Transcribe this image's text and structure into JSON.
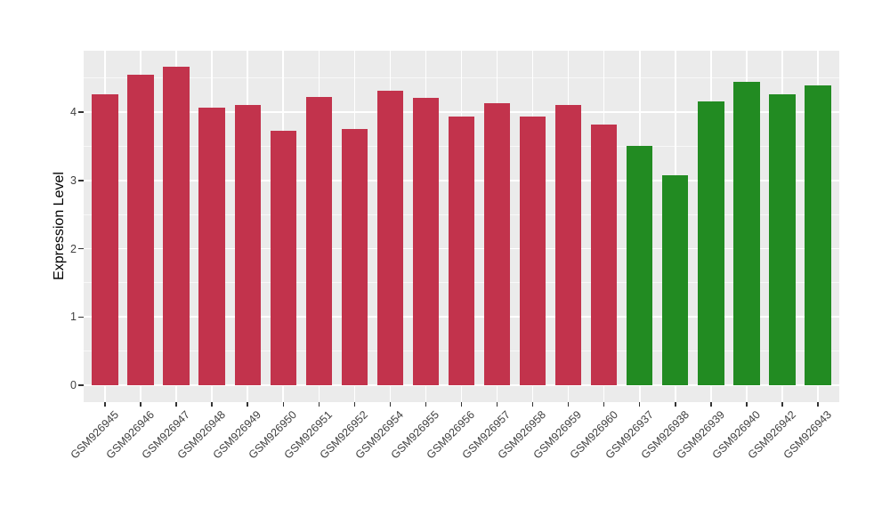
{
  "chart_data": {
    "type": "bar",
    "title": "",
    "xlabel": "",
    "ylabel": "Expression Level",
    "ylim": [
      0,
      4.9
    ],
    "yticks": [
      0,
      1,
      2,
      3,
      4
    ],
    "grid": "major-and-minor",
    "legend": "none",
    "categories": [
      "GSM926945",
      "GSM926946",
      "GSM926947",
      "GSM926948",
      "GSM926949",
      "GSM926950",
      "GSM926951",
      "GSM926952",
      "GSM926954",
      "GSM926955",
      "GSM926956",
      "GSM926957",
      "GSM926958",
      "GSM926959",
      "GSM926960",
      "GSM926937",
      "GSM926938",
      "GSM926939",
      "GSM926940",
      "GSM926942",
      "GSM926943"
    ],
    "values": [
      4.26,
      4.55,
      4.67,
      4.06,
      4.1,
      3.73,
      4.22,
      3.75,
      4.31,
      4.21,
      3.94,
      4.13,
      3.94,
      4.1,
      3.82,
      3.51,
      3.08,
      4.16,
      4.44,
      4.26,
      4.39
    ],
    "groups": [
      "red",
      "red",
      "red",
      "red",
      "red",
      "red",
      "red",
      "red",
      "red",
      "red",
      "red",
      "red",
      "red",
      "red",
      "red",
      "green",
      "green",
      "green",
      "green",
      "green",
      "green"
    ],
    "group_colors": {
      "red": "#C2334C",
      "green": "#228B22"
    }
  },
  "style": {
    "figure_bg": "#FFFFFF",
    "panel_bg": "#EBEBEB",
    "grid_color": "#FFFFFF",
    "tick_text_color": "#404040",
    "tick_mark_color": "#333333",
    "axis_title_color": "#000000"
  }
}
